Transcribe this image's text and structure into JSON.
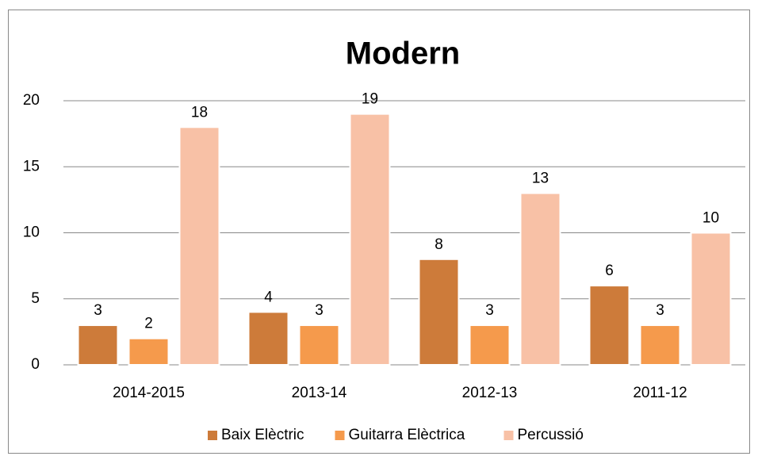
{
  "chart_data": {
    "type": "bar",
    "title": "Modern",
    "categories": [
      "2014-2015",
      "2013-14",
      "2012-13",
      "2011-12"
    ],
    "series": [
      {
        "name": "Baix Elèctric",
        "color": "#cd7b3a",
        "values": [
          3,
          4,
          8,
          6
        ]
      },
      {
        "name": "Guitarra Elèctrica",
        "color": "#f59a4c",
        "values": [
          2,
          3,
          3,
          3
        ]
      },
      {
        "name": "Percussió",
        "color": "#f8c1a6",
        "values": [
          18,
          19,
          13,
          10
        ]
      }
    ],
    "ylim": [
      0,
      20
    ],
    "yticks": [
      0,
      5,
      10,
      15,
      20
    ],
    "grid": true,
    "legend": "bottom"
  }
}
